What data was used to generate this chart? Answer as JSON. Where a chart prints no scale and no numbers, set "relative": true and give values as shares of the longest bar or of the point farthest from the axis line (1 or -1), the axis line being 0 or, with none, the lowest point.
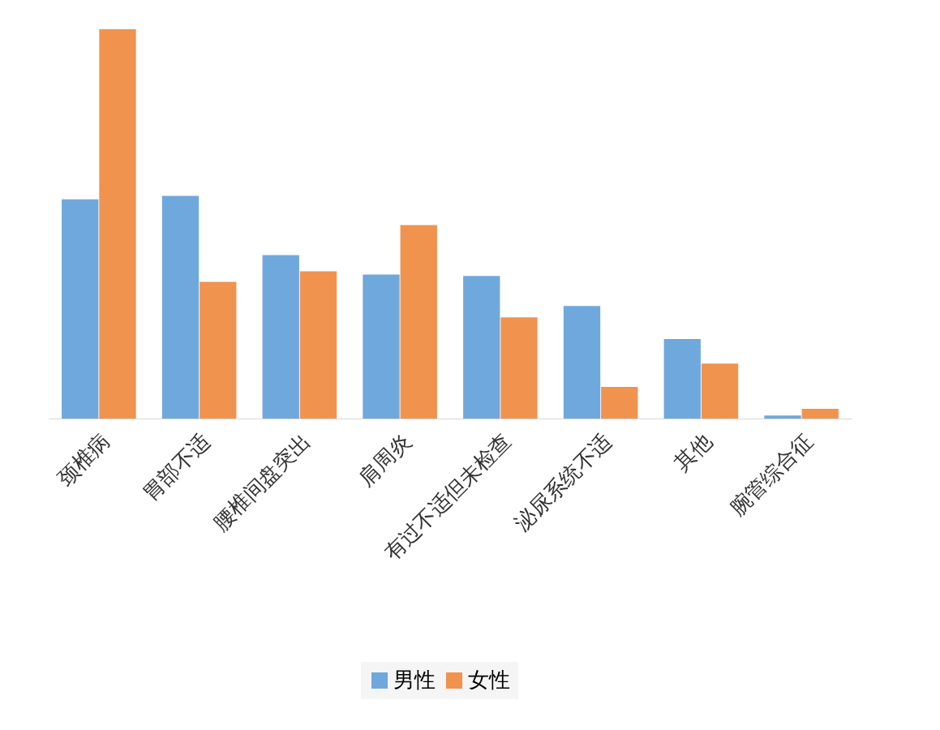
{
  "chart_data": {
    "type": "bar",
    "relative": true,
    "categories": [
      "颈椎病",
      "胃部不适",
      "腰椎间盘突出",
      "肩周炎",
      "有过不适但未检查",
      "泌尿系统不适",
      "其他",
      "腕管综合征"
    ],
    "series": [
      {
        "name": "男性",
        "color": "#6fa8dc",
        "values": [
          0.563,
          0.572,
          0.42,
          0.37,
          0.366,
          0.289,
          0.204,
          0.008
        ]
      },
      {
        "name": "女性",
        "color": "#f0934f",
        "values": [
          1,
          0.351,
          0.378,
          0.497,
          0.26,
          0.081,
          0.141,
          0.025
        ]
      }
    ],
    "legend": "bottom"
  }
}
